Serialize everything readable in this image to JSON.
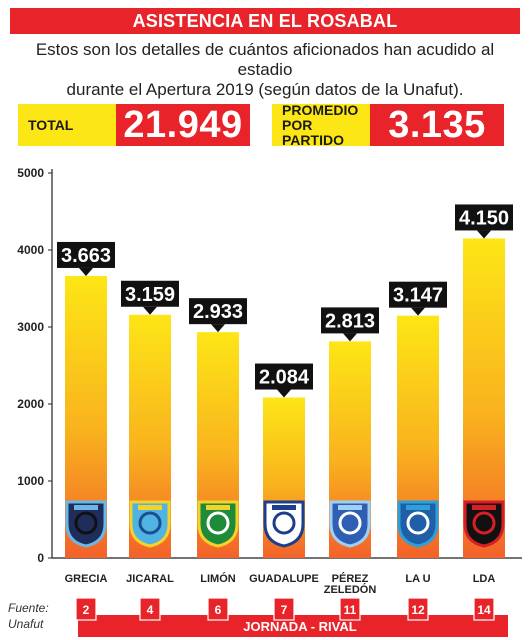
{
  "title": "ASISTENCIA EN EL ROSABAL",
  "subtitle_line1": "Estos son los detalles de cuántos aficionados han acudido al estadio",
  "subtitle_line2": "durante el Apertura 2019 (según datos de la Unafut).",
  "total": {
    "label": "TOTAL",
    "value": "21.949"
  },
  "average": {
    "label_line1": "PROMEDIO",
    "label_line2": "POR PARTIDO",
    "value": "3.135"
  },
  "source": {
    "line1": "Fuente:",
    "line2": "Unafut"
  },
  "colors": {
    "accent": "#e8232a",
    "yellow": "#fde616",
    "bar_top": "#fde616",
    "bar_bottom": "#f26b2a"
  },
  "chart_data": {
    "type": "bar",
    "categories": [
      "GRECIA",
      "JICARAL",
      "LIMÓN",
      "GUADALUPE",
      "PÉREZ ZELEDÓN",
      "LA U",
      "LDA"
    ],
    "category_lines": [
      [
        "GRECIA"
      ],
      [
        "JICARAL"
      ],
      [
        "LIMÓN"
      ],
      [
        "GUADALUPE"
      ],
      [
        "PÉREZ",
        "ZELEDÓN"
      ],
      [
        "LA U"
      ],
      [
        "LDA"
      ]
    ],
    "values": [
      3663,
      3159,
      2933,
      2084,
      2813,
      3147,
      4150
    ],
    "value_labels": [
      "3.663",
      "3.159",
      "2.933",
      "2.084",
      "2.813",
      "3.147",
      "4.150"
    ],
    "jornadas": [
      "2",
      "4",
      "6",
      "7",
      "11",
      "12",
      "14"
    ],
    "jornada_label": "JORNADA - RIVAL",
    "yticks": [
      0,
      1000,
      2000,
      3000,
      4000,
      5000
    ],
    "ylim": [
      0,
      5000
    ],
    "grid": false,
    "crest_icons": [
      "grecia-crest-icon",
      "jicaral-crest-icon",
      "limon-crest-icon",
      "guadalupe-crest-icon",
      "perez-zeledon-crest-icon",
      "la-u-crest-icon",
      "lda-crest-icon"
    ]
  }
}
